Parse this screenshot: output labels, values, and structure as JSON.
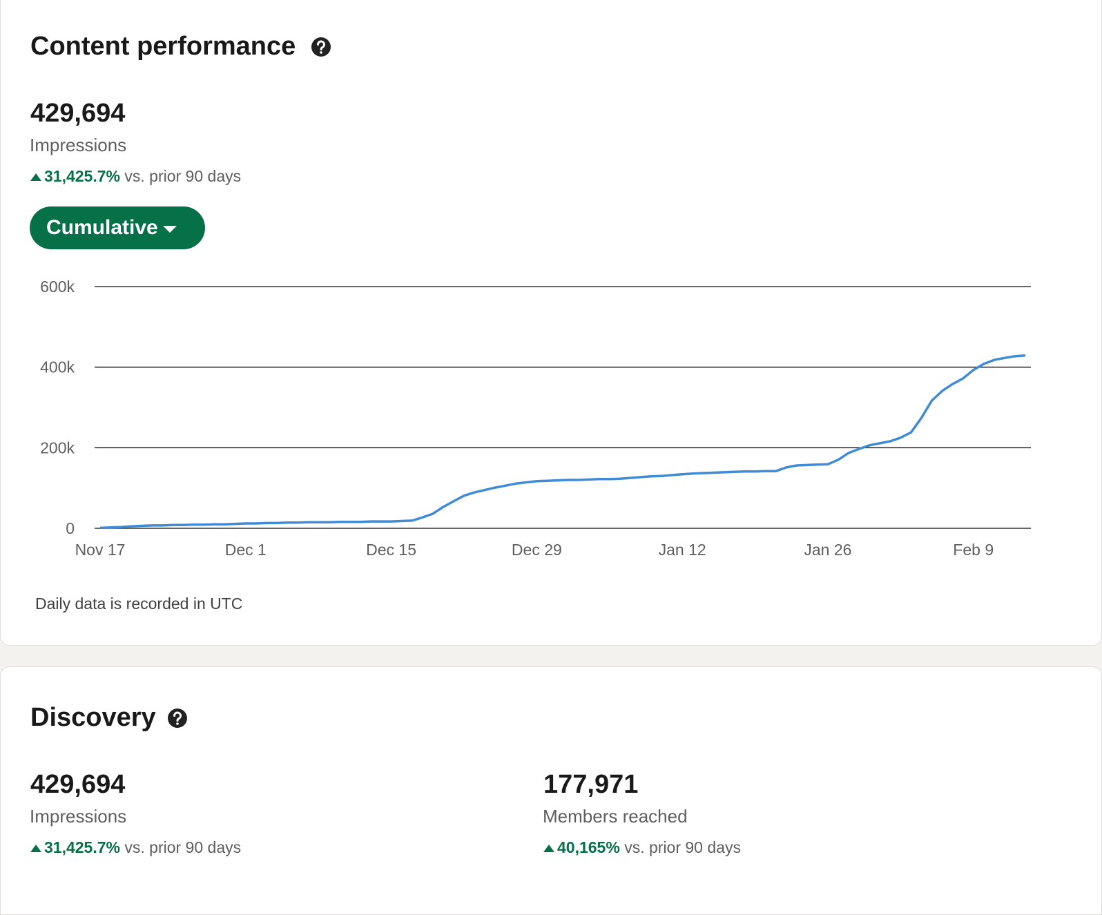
{
  "content_performance": {
    "title": "Content performance",
    "metric": {
      "value": "429,694",
      "label": "Impressions",
      "change": "31,425.7%",
      "comparison": "vs. prior 90 days"
    },
    "button": "Cumulative",
    "note": "Daily data is recorded in UTC"
  },
  "chart_data": {
    "type": "line",
    "color": "#3f8bd6",
    "grid": true,
    "categories": [
      "Nov 17",
      null,
      null,
      null,
      null,
      null,
      null,
      null,
      null,
      null,
      null,
      null,
      null,
      null,
      "Dec 1",
      null,
      null,
      null,
      null,
      null,
      null,
      null,
      null,
      null,
      null,
      null,
      null,
      null,
      "Dec 15",
      null,
      null,
      null,
      null,
      null,
      null,
      null,
      null,
      null,
      null,
      null,
      null,
      null,
      "Dec 29",
      null,
      null,
      null,
      null,
      null,
      null,
      null,
      null,
      null,
      null,
      null,
      null,
      null,
      "Jan 12",
      null,
      null,
      null,
      null,
      null,
      null,
      null,
      null,
      null,
      null,
      null,
      null,
      null,
      "Jan 26",
      null,
      null,
      null,
      null,
      null,
      null,
      null,
      null,
      null,
      null,
      null,
      null,
      null,
      "Feb 9",
      null,
      null,
      null,
      null,
      null
    ],
    "values": [
      1000,
      2000,
      3000,
      5000,
      6000,
      7000,
      7000,
      8000,
      8000,
      9000,
      9000,
      10000,
      10000,
      11000,
      12000,
      12000,
      13000,
      13000,
      14000,
      14000,
      15000,
      15000,
      15000,
      16000,
      16000,
      16000,
      17000,
      17000,
      17000,
      18000,
      19000,
      27000,
      36000,
      53000,
      67000,
      81000,
      89000,
      95000,
      101000,
      106000,
      111000,
      114000,
      117000,
      118000,
      119000,
      120000,
      120000,
      121000,
      122000,
      122000,
      123000,
      125000,
      127000,
      129000,
      130000,
      132000,
      134000,
      136000,
      137000,
      138000,
      139000,
      140000,
      141000,
      141000,
      142000,
      142000,
      151000,
      156000,
      157000,
      158000,
      159000,
      170000,
      187000,
      197000,
      206000,
      211000,
      216000,
      225000,
      238000,
      274000,
      317000,
      341000,
      358000,
      372000,
      393000,
      408000,
      418000,
      423000,
      427000,
      429000
    ],
    "ylim": [
      0,
      600000
    ],
    "yticks": [
      0,
      {
        "value": 200000,
        "label": "200k"
      },
      {
        "value": 400000,
        "label": "400k"
      },
      {
        "value": 600000,
        "label": "600k"
      }
    ]
  },
  "discovery": {
    "title": "Discovery",
    "metrics": [
      {
        "value": "429,694",
        "label": "Impressions",
        "change": "31,425.7%",
        "comparison": "vs. prior 90 days"
      },
      {
        "value": "177,971",
        "label": "Members reached",
        "change": "40,165%",
        "comparison": "vs. prior 90 days"
      }
    ]
  }
}
